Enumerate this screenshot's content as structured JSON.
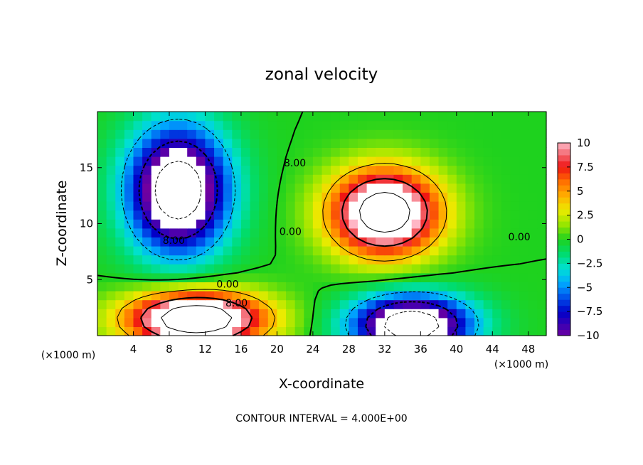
{
  "chart_data": {
    "type": "heatmap",
    "title": "zonal velocity",
    "xlabel": "X-coordinate",
    "ylabel": "Z-coordinate",
    "x_unit": "(×1000 m)",
    "x_unit_right": "(×1000 m)",
    "xlim": [
      0,
      50
    ],
    "ylim": [
      0,
      20
    ],
    "x_ticks": [
      4,
      8,
      12,
      16,
      20,
      24,
      28,
      32,
      36,
      40,
      44,
      48
    ],
    "x_tick_labels": [
      "4",
      "8",
      "12",
      "16",
      "20",
      "24",
      "28",
      "32",
      "36",
      "40",
      "44",
      "48"
    ],
    "y_ticks": [
      5,
      10,
      15
    ],
    "y_tick_labels": [
      "5",
      "10",
      "15"
    ],
    "colorbar": {
      "min": -10,
      "max": 10,
      "ticks": [
        10,
        7.5,
        5,
        2.5,
        0,
        -2.5,
        -5,
        -7.5,
        -10
      ],
      "tick_labels": [
        "10",
        "7.5",
        "5",
        "2.5",
        "0",
        "−2.5",
        "−5",
        "−7.5",
        "−10"
      ]
    },
    "contour_labels": [
      {
        "text": "8.00",
        "x": 22.0,
        "y": 15.1
      },
      {
        "text": "0.00",
        "x": 21.5,
        "y": 9.0
      },
      {
        "text": "8.00",
        "x": 8.5,
        "y": 8.2
      },
      {
        "text": "0.00",
        "x": 14.5,
        "y": 4.3
      },
      {
        "text": "8.00",
        "x": 15.5,
        "y": 2.6
      },
      {
        "text": "0.00",
        "x": 47.0,
        "y": 8.5
      }
    ],
    "features": [
      {
        "name": "upper-left negative core",
        "sign": -1,
        "cx": 9,
        "cz": 13.0,
        "amp": 15,
        "rx": 5.5,
        "rz": 5.5
      },
      {
        "name": "upper-middle positive core",
        "sign": 1,
        "cx": 32,
        "cz": 11.0,
        "amp": 15,
        "rx": 6.0,
        "rz": 3.8
      },
      {
        "name": "lower-left positive core",
        "sign": 1,
        "cx": 11,
        "cz": 1.5,
        "amp": 16,
        "rx": 7.5,
        "rz": 2.4
      },
      {
        "name": "lower-right negative core",
        "sign": -1,
        "cx": 35,
        "cz": 1.0,
        "amp": 15,
        "rx": 6.5,
        "rz": 2.6
      }
    ],
    "grid": false,
    "footer": "CONTOUR INTERVAL = 4.000E+00"
  }
}
